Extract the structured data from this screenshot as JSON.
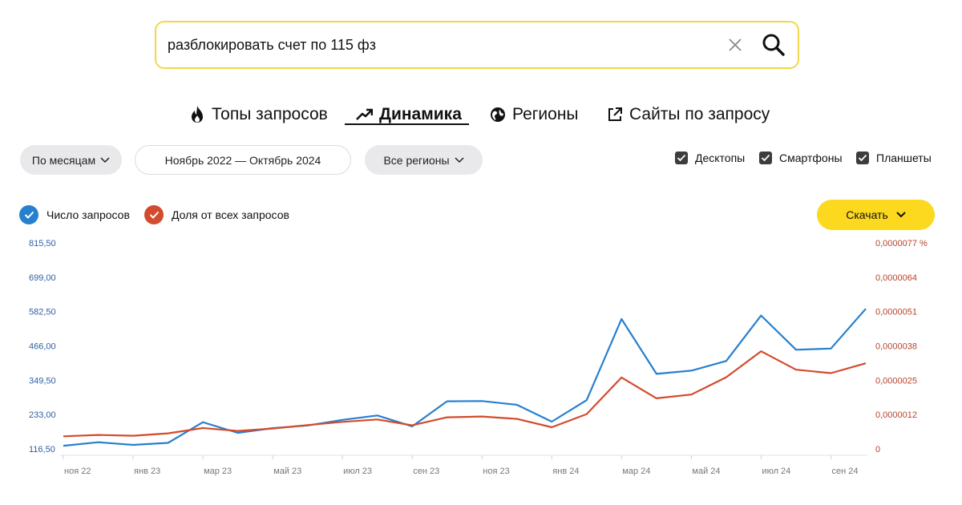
{
  "search": {
    "query": "разблокировать счет по 115 фз"
  },
  "tabs": [
    {
      "label": "Топы запросов",
      "icon": "fire-icon"
    },
    {
      "label": "Динамика",
      "icon": "trend-arrow-icon",
      "active": true
    },
    {
      "label": "Регионы",
      "icon": "globe-icon"
    },
    {
      "label": "Сайты по запросу",
      "icon": "external-link-icon"
    }
  ],
  "filters": {
    "period_select": "По месяцам",
    "date_range": "Ноябрь 2022 — Октябрь 2024",
    "region_select": "Все регионы"
  },
  "devices": [
    {
      "label": "Десктопы",
      "checked": true
    },
    {
      "label": "Смартфоны",
      "checked": true
    },
    {
      "label": "Планшеты",
      "checked": true
    }
  ],
  "legend": {
    "count_label": "Число запросов",
    "share_label": "Доля от всех запросов"
  },
  "download_label": "Скачать",
  "colors": {
    "blue": "#2680cf",
    "red": "#d44a2c",
    "accent": "#fcd81f"
  },
  "chart_data": {
    "type": "line",
    "x": [
      "ноя 22",
      "дек 22",
      "янв 23",
      "фев 23",
      "мар 23",
      "апр 23",
      "май 23",
      "июн 23",
      "июл 23",
      "авг 23",
      "сен 23",
      "окт 23",
      "ноя 23",
      "дек 23",
      "янв 24",
      "фев 24",
      "мар 24",
      "апр 24",
      "май 24",
      "июн 24",
      "июл 24",
      "авг 24",
      "сен 24",
      "окт 24"
    ],
    "x_tick_labels": [
      "ноя 22",
      "янв 23",
      "мар 23",
      "май 23",
      "июл 23",
      "сен 23",
      "ноя 23",
      "янв 24",
      "мар 24",
      "май 24",
      "июл 24",
      "сен 24"
    ],
    "y_left_ticks": [
      "116,50",
      "233,00",
      "349,50",
      "466,00",
      "582,50",
      "699,00",
      "815,50"
    ],
    "y_right_ticks": [
      "0",
      "0,0000012",
      "0,0000025",
      "0,0000038",
      "0,0000051",
      "0,0000064",
      "0,0000077 %"
    ],
    "ylim_left": [
      116.5,
      815.5
    ],
    "ylim_right": [
      0,
      7.7e-06
    ],
    "series": [
      {
        "name": "Число запросов",
        "axis": "left",
        "color": "#2680cf",
        "values": [
          127,
          139,
          130,
          137,
          207,
          171,
          187,
          196,
          215,
          230,
          193,
          278,
          279,
          266,
          209,
          282,
          557,
          371,
          382,
          415,
          569,
          453,
          457,
          592
        ]
      },
      {
        "name": "Доля от всех запросов",
        "axis": "right",
        "color": "#d44a2c",
        "values": [
          4.7e-07,
          5.2e-07,
          4.9e-07,
          5.8e-07,
          7.8e-07,
          6.7e-07,
          7.6e-07,
          8.9e-07,
          1.01e-06,
          1.1e-06,
          8.8e-07,
          1.18e-06,
          1.21e-06,
          1.12e-06,
          8.1e-07,
          1.3e-06,
          2.67e-06,
          1.89e-06,
          2.03e-06,
          2.68e-06,
          3.65e-06,
          2.96e-06,
          2.83e-06,
          3.2e-06
        ]
      }
    ],
    "grid": false
  }
}
